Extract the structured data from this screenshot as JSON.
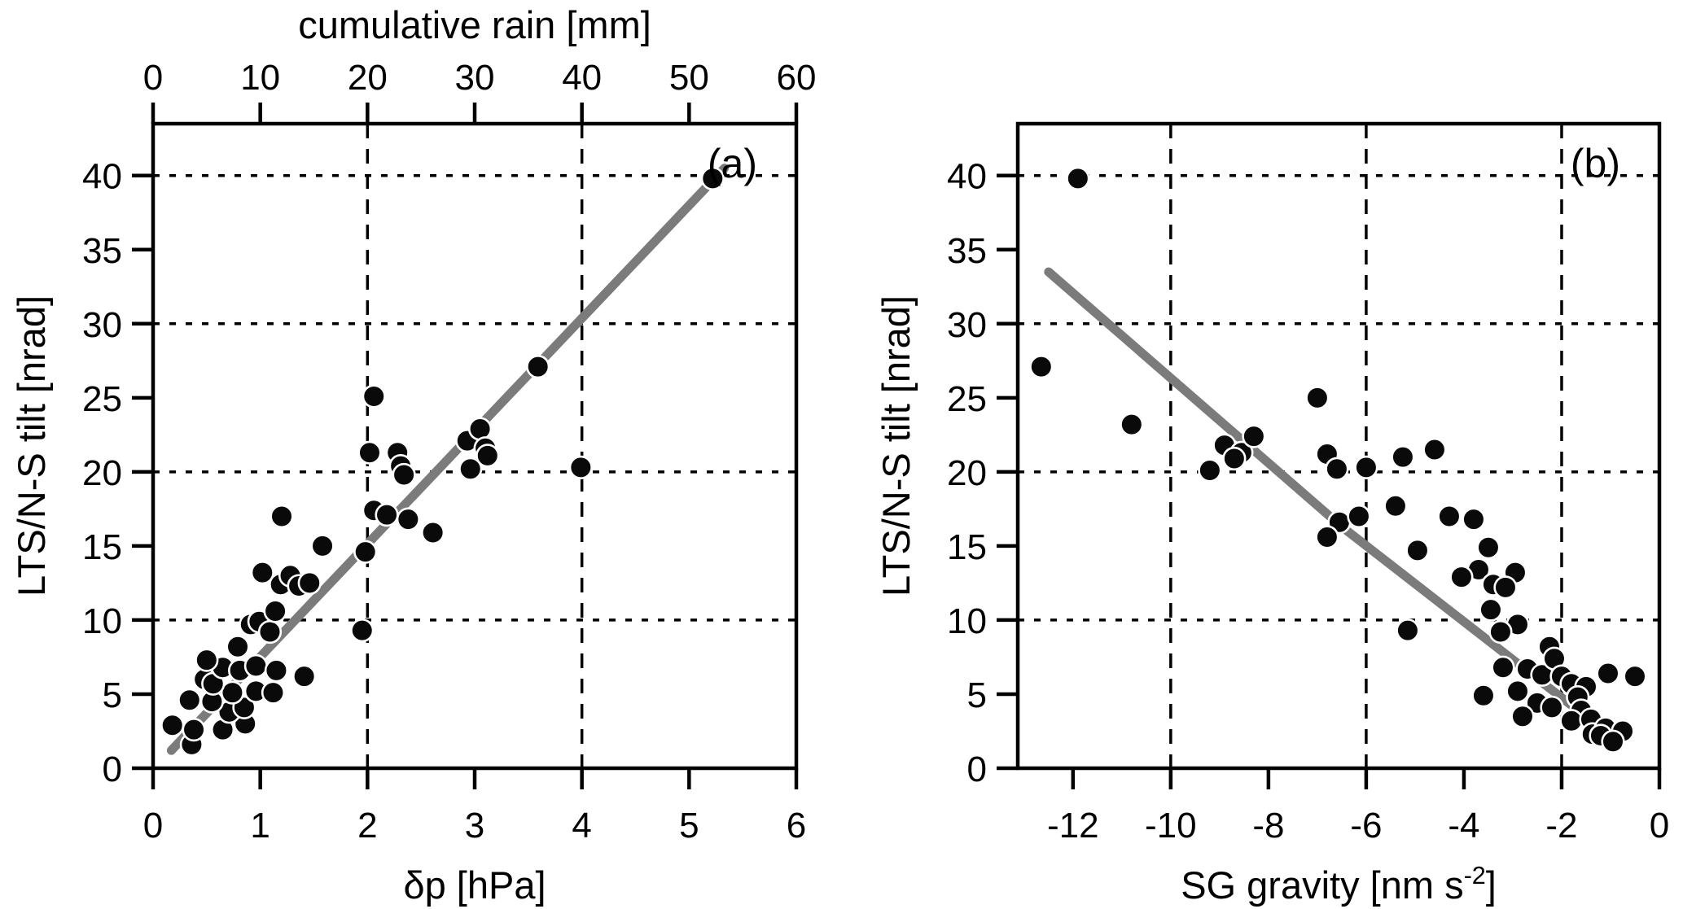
{
  "figure": {
    "panel_a_letter": "(a)",
    "panel_b_letter": "(b)",
    "colors": {
      "axis": "#000000",
      "point_fill": "#0a0a0a",
      "point_rim": "#ffffff",
      "fit_line": "#7b7b7b",
      "gridline": "#000000",
      "background": "#ffffff"
    }
  },
  "chart_data": [
    {
      "type": "scatter",
      "panel": "a",
      "panel_label": "(a)",
      "xlabel": "δp [hPa]",
      "xlabel_top": "cumulative rain [mm]",
      "ylabel": "LTS/N-S tilt [nrad]",
      "xlim": [
        0,
        6
      ],
      "xlim_top": [
        0,
        60
      ],
      "ylim": [
        0,
        43.5
      ],
      "x_ticks": [
        0,
        1,
        2,
        3,
        4,
        5,
        6
      ],
      "x_tick_labels": [
        "0",
        "1",
        "2",
        "3",
        "4",
        "5",
        "6"
      ],
      "x_ticks_top": [
        0,
        10,
        20,
        30,
        40,
        50,
        60
      ],
      "x_tick_labels_top": [
        "0",
        "10",
        "20",
        "30",
        "40",
        "50",
        "60"
      ],
      "y_ticks": [
        0,
        5,
        10,
        15,
        20,
        25,
        30,
        35,
        40
      ],
      "y_tick_labels": [
        "0",
        "5",
        "10",
        "15",
        "20",
        "25",
        "30",
        "35",
        "40"
      ],
      "x_gridlines": [
        2,
        4
      ],
      "y_gridlines": [
        10,
        20,
        30,
        40
      ],
      "grid_on": true,
      "legend": null,
      "fit_line": [
        [
          0.17,
          1.2
        ],
        [
          5.33,
          40.5
        ]
      ],
      "points": [
        [
          0.18,
          2.9
        ],
        [
          0.36,
          1.6
        ],
        [
          0.38,
          2.6
        ],
        [
          0.65,
          2.6
        ],
        [
          0.86,
          3.0
        ],
        [
          0.71,
          3.8
        ],
        [
          0.85,
          4.1
        ],
        [
          0.34,
          4.6
        ],
        [
          0.55,
          4.5
        ],
        [
          0.74,
          5.1
        ],
        [
          0.96,
          5.2
        ],
        [
          1.12,
          5.1
        ],
        [
          0.48,
          6.0
        ],
        [
          0.56,
          5.7
        ],
        [
          0.65,
          6.8
        ],
        [
          0.81,
          6.6
        ],
        [
          0.96,
          6.9
        ],
        [
          1.15,
          6.6
        ],
        [
          1.41,
          6.2
        ],
        [
          0.5,
          7.3
        ],
        [
          0.79,
          8.2
        ],
        [
          0.91,
          9.7
        ],
        [
          0.99,
          9.9
        ],
        [
          1.09,
          9.2
        ],
        [
          1.95,
          9.3
        ],
        [
          1.14,
          10.6
        ],
        [
          1.02,
          13.2
        ],
        [
          1.19,
          12.4
        ],
        [
          1.28,
          13.0
        ],
        [
          1.36,
          12.3
        ],
        [
          1.46,
          12.5
        ],
        [
          1.2,
          17.0
        ],
        [
          1.58,
          15.0
        ],
        [
          1.98,
          14.6
        ],
        [
          2.06,
          17.4
        ],
        [
          2.18,
          17.1
        ],
        [
          2.38,
          16.8
        ],
        [
          2.61,
          15.9
        ],
        [
          2.02,
          21.3
        ],
        [
          2.28,
          21.3
        ],
        [
          2.31,
          20.4
        ],
        [
          2.34,
          19.8
        ],
        [
          2.06,
          25.1
        ],
        [
          2.93,
          22.1
        ],
        [
          3.05,
          22.9
        ],
        [
          3.1,
          21.6
        ],
        [
          3.12,
          21.1
        ],
        [
          2.96,
          20.2
        ],
        [
          3.59,
          27.1
        ],
        [
          3.99,
          20.3
        ],
        [
          5.22,
          39.8
        ]
      ]
    },
    {
      "type": "scatter",
      "panel": "b",
      "panel_label": "(b)",
      "xlabel_parts": {
        "prefix": "SG gravity [nm s",
        "sup": "-2",
        "suffix": "]"
      },
      "ylabel": "LTS/N-S tilt [nrad]",
      "xlim": [
        -13.13,
        0
      ],
      "ylim": [
        0,
        43.5
      ],
      "x_ticks": [
        -12,
        -10,
        -8,
        -6,
        -4,
        -2,
        0
      ],
      "x_tick_labels": [
        "-12",
        "-10",
        "-8",
        "-6",
        "-4",
        "-2",
        "0"
      ],
      "y_ticks": [
        0,
        5,
        10,
        15,
        20,
        25,
        30,
        35,
        40
      ],
      "y_tick_labels": [
        "0",
        "5",
        "10",
        "15",
        "20",
        "25",
        "30",
        "35",
        "40"
      ],
      "x_gridlines": [
        -10,
        -6,
        -2
      ],
      "y_gridlines": [
        10,
        20,
        30,
        40
      ],
      "grid_on": true,
      "legend": null,
      "fit_line": [
        [
          -12.5,
          33.5
        ],
        [
          -6.5,
          16.3
        ],
        [
          -1.0,
          2.2
        ]
      ],
      "points": [
        [
          -11.9,
          39.8
        ],
        [
          -12.65,
          27.1
        ],
        [
          -10.8,
          23.2
        ],
        [
          -8.9,
          21.8
        ],
        [
          -8.55,
          21.3
        ],
        [
          -8.7,
          20.9
        ],
        [
          -8.3,
          22.4
        ],
        [
          -9.2,
          20.1
        ],
        [
          -7.0,
          25.0
        ],
        [
          -6.8,
          21.2
        ],
        [
          -6.6,
          20.2
        ],
        [
          -6.0,
          20.3
        ],
        [
          -5.25,
          21.0
        ],
        [
          -4.6,
          21.5
        ],
        [
          -6.55,
          16.6
        ],
        [
          -6.15,
          17.0
        ],
        [
          -6.8,
          15.6
        ],
        [
          -5.4,
          17.7
        ],
        [
          -4.3,
          17.0
        ],
        [
          -3.8,
          16.8
        ],
        [
          -4.95,
          14.7
        ],
        [
          -3.5,
          14.9
        ],
        [
          -3.7,
          13.4
        ],
        [
          -4.05,
          12.9
        ],
        [
          -2.95,
          13.2
        ],
        [
          -3.4,
          12.4
        ],
        [
          -3.15,
          12.2
        ],
        [
          -3.45,
          10.7
        ],
        [
          -5.15,
          9.3
        ],
        [
          -2.9,
          9.7
        ],
        [
          -3.25,
          9.2
        ],
        [
          -3.6,
          4.9
        ],
        [
          -3.2,
          6.8
        ],
        [
          -2.7,
          6.7
        ],
        [
          -2.4,
          6.3
        ],
        [
          -2.9,
          5.2
        ],
        [
          -2.25,
          8.2
        ],
        [
          -2.15,
          7.4
        ],
        [
          -2.0,
          6.2
        ],
        [
          -1.05,
          6.4
        ],
        [
          -0.5,
          6.2
        ],
        [
          -1.8,
          5.7
        ],
        [
          -1.5,
          5.5
        ],
        [
          -1.67,
          4.8
        ],
        [
          -2.5,
          4.4
        ],
        [
          -2.2,
          4.1
        ],
        [
          -1.6,
          3.9
        ],
        [
          -2.8,
          3.5
        ],
        [
          -1.8,
          3.2
        ],
        [
          -1.4,
          3.3
        ],
        [
          -1.37,
          2.3
        ],
        [
          -1.1,
          2.7
        ],
        [
          -0.75,
          2.5
        ],
        [
          -1.2,
          2.2
        ],
        [
          -0.95,
          1.8
        ]
      ]
    }
  ]
}
